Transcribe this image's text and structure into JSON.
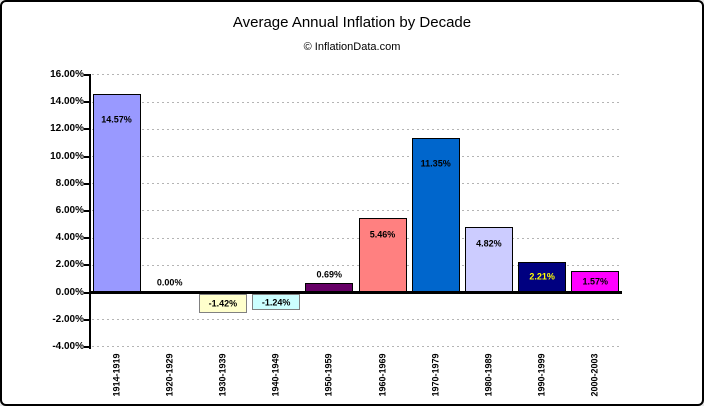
{
  "chart_data": {
    "type": "bar",
    "title": "Average Annual Inflation by Decade",
    "subtitle": "© InflationData.com",
    "categories": [
      "1914-1919",
      "1920-1929",
      "1930-1939",
      "1940-1949",
      "1950-1959",
      "1960-1969",
      "1970-1979",
      "1980-1989",
      "1990-1999",
      "2000-2003"
    ],
    "values": [
      14.57,
      0.0,
      -1.42,
      -1.24,
      0.69,
      5.46,
      11.35,
      4.82,
      2.21,
      1.57
    ],
    "labels": [
      "14.57%",
      "0.00%",
      "-1.42%",
      "-1.24%",
      "0.69%",
      "5.46%",
      "11.35%",
      "4.82%",
      "2.21%",
      "1.57%"
    ],
    "bar_colors": [
      "#9999FF",
      "#993366",
      "#FFFFCC",
      "#CCFFFF",
      "#660066",
      "#FF8080",
      "#0066CC",
      "#CCCCFF",
      "#000080",
      "#FF00FF"
    ],
    "bar_border_colors": [
      "#000000",
      "#000000",
      "#808080",
      "#808080",
      "#000000",
      "#000000",
      "#000000",
      "#000000",
      "#000000",
      "#000000"
    ],
    "label_colors": [
      "#000000",
      "#000000",
      "#000000",
      "#000000",
      "#000000",
      "#000000",
      "#000000",
      "#000000",
      "#FFFF00",
      "#000000"
    ],
    "xlabel": "",
    "ylabel": "",
    "ylim": [
      -4,
      16
    ],
    "y_step": 2,
    "y_tick_labels": [
      "16.00%",
      "14.00%",
      "12.00%",
      "10.00%",
      "8.00%",
      "6.00%",
      "4.00%",
      "2.00%",
      "0.00%",
      "-2.00%",
      "-4.00%"
    ],
    "grid": "horizontal-dashed",
    "legend_position": "none"
  }
}
